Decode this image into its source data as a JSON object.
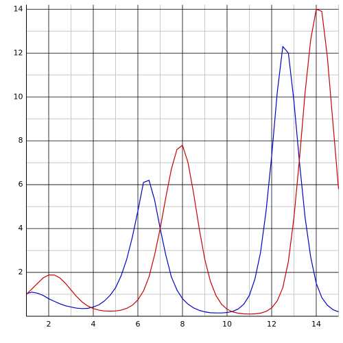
{
  "chart_data": {
    "type": "line",
    "x": [
      1,
      1.25,
      1.5,
      1.75,
      2,
      2.25,
      2.5,
      2.75,
      3,
      3.25,
      3.5,
      3.75,
      4,
      4.25,
      4.5,
      4.75,
      5,
      5.25,
      5.5,
      5.75,
      6,
      6.25,
      6.5,
      6.75,
      7,
      7.25,
      7.5,
      7.75,
      8,
      8.25,
      8.5,
      8.75,
      9,
      9.25,
      9.5,
      9.75,
      10,
      10.25,
      10.5,
      10.75,
      11,
      11.25,
      11.5,
      11.75,
      12,
      12.25,
      12.5,
      12.75,
      13,
      13.25,
      13.5,
      13.75,
      14,
      14.25,
      14.5,
      14.75,
      15
    ],
    "series": [
      {
        "color": "#0000c8",
        "values": [
          1.03,
          1.1,
          1.05,
          0.95,
          0.8,
          0.68,
          0.57,
          0.48,
          0.42,
          0.37,
          0.35,
          0.36,
          0.42,
          0.52,
          0.7,
          0.95,
          1.3,
          1.85,
          2.6,
          3.6,
          4.8,
          6.1,
          6.2,
          5.3,
          4.0,
          2.8,
          1.8,
          1.2,
          0.8,
          0.55,
          0.38,
          0.27,
          0.2,
          0.16,
          0.15,
          0.15,
          0.17,
          0.22,
          0.33,
          0.55,
          0.95,
          1.7,
          2.9,
          4.8,
          7.3,
          10.2,
          12.3,
          12.0,
          9.8,
          7.0,
          4.5,
          2.7,
          1.5,
          0.85,
          0.5,
          0.3,
          0.2
        ]
      },
      {
        "color": "#c80000",
        "values": [
          1.0,
          1.25,
          1.5,
          1.75,
          1.88,
          1.88,
          1.75,
          1.5,
          1.2,
          0.9,
          0.65,
          0.47,
          0.35,
          0.28,
          0.24,
          0.23,
          0.24,
          0.28,
          0.36,
          0.5,
          0.75,
          1.15,
          1.8,
          2.8,
          4.0,
          5.4,
          6.7,
          7.6,
          7.8,
          7.0,
          5.6,
          4.0,
          2.6,
          1.6,
          0.95,
          0.55,
          0.32,
          0.2,
          0.14,
          0.11,
          0.1,
          0.11,
          0.14,
          0.22,
          0.38,
          0.7,
          1.3,
          2.5,
          4.5,
          7.2,
          10.2,
          12.6,
          14.0,
          13.9,
          11.8,
          8.8,
          5.8
        ]
      }
    ],
    "xlim": [
      1,
      15
    ],
    "ylim": [
      0,
      14.2
    ],
    "xticks": [
      2,
      4,
      6,
      8,
      10,
      12,
      14
    ],
    "yticks": [
      2,
      4,
      6,
      8,
      10,
      12,
      14
    ],
    "xminor": [
      3,
      5,
      7,
      9,
      11,
      13,
      15
    ],
    "yminor": [
      1,
      3,
      5,
      7,
      9,
      11,
      13
    ],
    "grid": true
  }
}
